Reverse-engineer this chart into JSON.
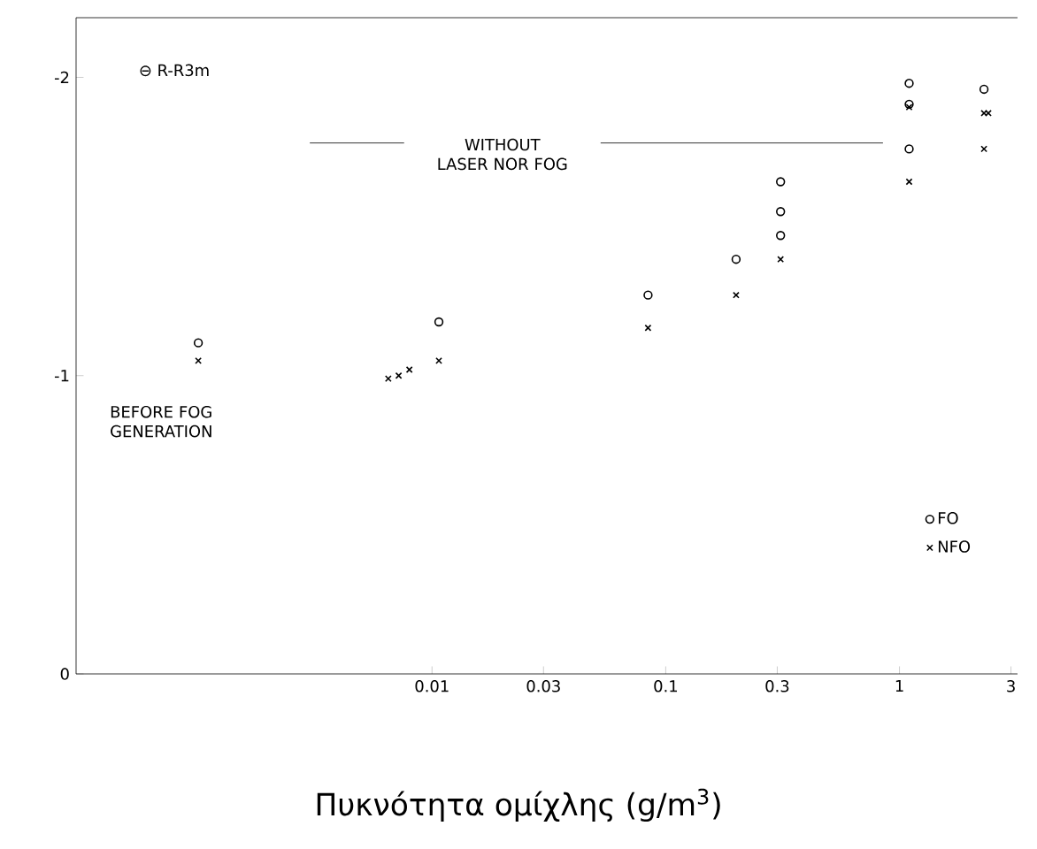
{
  "chart_data": {
    "type": "scatter",
    "xlabel": "Πυκνότητα ομίχλης (g/m$^{3}$)",
    "annotations": [
      "⊖ R-R3m",
      {
        "text": "BEFORE FOG GENERATION",
        "x": 0.001,
        "y": -1.05
      }
    ],
    "log": "x",
    "xlim": [
      0.0003,
      3.2
    ],
    "ylim": [
      0,
      -2.2
    ],
    "xticks": [
      0.01,
      0.03,
      0.1,
      0.3,
      1,
      3
    ],
    "yticks": [
      0,
      -1,
      -2
    ],
    "grid": false,
    "legend": "bottom right",
    "ref_lines": [
      {
        "axis": "y",
        "value": -1.78,
        "label": "WITHOUT LASER NOR FOG"
      }
    ],
    "series": [
      {
        "name": "FO",
        "color": "#000000",
        "marker": "circle",
        "x": [
          0.001,
          0.0107,
          0.084,
          0.2,
          0.31,
          0.31,
          0.31,
          1.1,
          1.1,
          1.1,
          2.3
        ],
        "values": [
          -1.11,
          -1.18,
          -1.27,
          -1.39,
          -1.65,
          -1.55,
          -1.47,
          -1.98,
          -1.91,
          -1.76,
          -1.96
        ]
      },
      {
        "name": "NFO",
        "color": "#000000",
        "marker": "cross",
        "x": [
          0.001,
          0.0065,
          0.0072,
          0.008,
          0.0107,
          0.084,
          0.2,
          0.31,
          1.1,
          1.1,
          2.3,
          2.4,
          2.3
        ],
        "values": [
          -1.05,
          -0.99,
          -1.0,
          -1.02,
          -1.05,
          -1.16,
          -1.27,
          -1.39,
          -1.9,
          -1.65,
          -1.88,
          -1.88,
          -1.76
        ]
      }
    ]
  }
}
